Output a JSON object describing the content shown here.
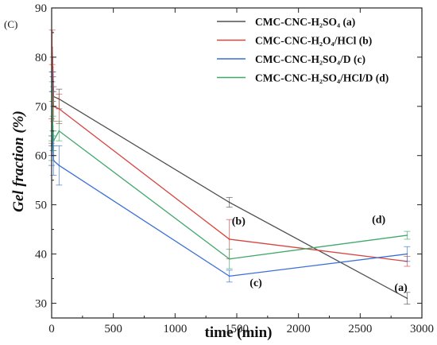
{
  "chart_data": {
    "type": "line",
    "panel_label": "(C)",
    "xlabel": "time (min)",
    "ylabel": "Gel fraction (%)",
    "xlim": [
      0,
      3000
    ],
    "ylim": [
      27,
      90
    ],
    "x_ticks": [
      0,
      500,
      1000,
      1500,
      2000,
      2500,
      3000
    ],
    "y_ticks": [
      30,
      40,
      50,
      60,
      70,
      80,
      90
    ],
    "grid": false,
    "legend_position": "top-right",
    "series": [
      {
        "name": "CMC-CNC-H₂SO₄ (a)",
        "color": "#505050",
        "x": [
          0,
          5,
          10,
          15,
          60,
          1440,
          2880
        ],
        "y": [
          62,
          75,
          78,
          72,
          71.5,
          50.5,
          31
        ],
        "err": [
          2,
          2,
          2,
          2,
          2,
          1,
          1.2
        ],
        "tag": "(a)"
      },
      {
        "name": "CMC-CNC-H₂O₄/HCl (b)",
        "color": "#d6453f",
        "x": [
          0,
          5,
          10,
          15,
          60,
          1440,
          2880
        ],
        "y": [
          65,
          82,
          74,
          70,
          69.5,
          43,
          38.5
        ],
        "err": [
          2.5,
          3.5,
          3,
          3,
          3,
          4,
          1
        ],
        "tag": "(b)"
      },
      {
        "name": "CMC-CNC-H₂SO₄/D (c)",
        "color": "#3a6fd6",
        "x": [
          0,
          5,
          10,
          15,
          60,
          1440,
          2880
        ],
        "y": [
          60,
          75,
          63,
          59,
          58,
          35.5,
          40
        ],
        "err": [
          2,
          2,
          2,
          3,
          4,
          1.2,
          1.5
        ],
        "tag": "(c)"
      },
      {
        "name": "CMC-CNC-H₂SO₄/HCl/D (d)",
        "color": "#3fa86a",
        "x": [
          0,
          5,
          10,
          15,
          60,
          1440,
          2880
        ],
        "y": [
          61,
          73,
          66,
          63,
          65,
          39,
          43.8
        ],
        "err": [
          2,
          2,
          2,
          2,
          2,
          2,
          0.8
        ],
        "tag": "(d)"
      }
    ]
  }
}
